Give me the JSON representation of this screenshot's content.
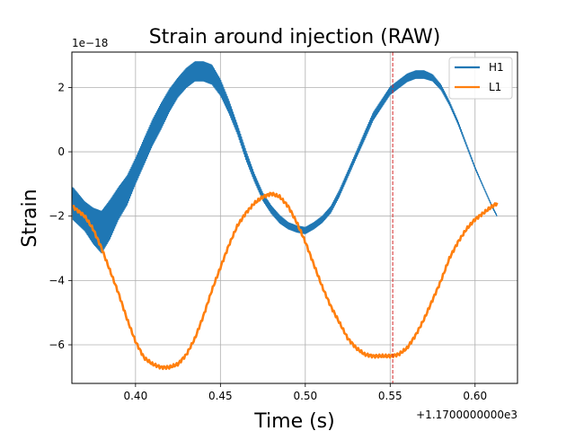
{
  "chart_data": {
    "type": "line",
    "title": "Strain around injection (RAW)",
    "xlabel": "Time (s)",
    "ylabel": "Strain",
    "x_offset_label": "+1.1700000000e3",
    "y_scale_label": "1e−18",
    "xlim": [
      0.3625,
      0.625
    ],
    "ylim": [
      -7.2,
      3.1
    ],
    "xticks": [
      0.4,
      0.45,
      0.5,
      0.55,
      0.6
    ],
    "xtick_labels": [
      "0.40",
      "0.45",
      "0.50",
      "0.55",
      "0.60"
    ],
    "yticks": [
      -6,
      -4,
      -2,
      0,
      2
    ],
    "ytick_labels": [
      "−6",
      "−4",
      "−2",
      "0",
      "2"
    ],
    "grid": true,
    "legend_position": "top-right",
    "injection_marker": {
      "x": 0.5515,
      "color": "#d62728",
      "style": "dashed"
    },
    "series": [
      {
        "name": "H1",
        "color": "#1f77b4",
        "oscillation": true,
        "x": [
          0.363,
          0.37,
          0.375,
          0.38,
          0.385,
          0.39,
          0.395,
          0.4,
          0.405,
          0.41,
          0.415,
          0.42,
          0.425,
          0.43,
          0.435,
          0.44,
          0.445,
          0.45,
          0.455,
          0.46,
          0.465,
          0.47,
          0.475,
          0.48,
          0.485,
          0.49,
          0.495,
          0.5,
          0.505,
          0.51,
          0.515,
          0.52,
          0.525,
          0.53,
          0.535,
          0.54,
          0.545,
          0.55,
          0.555,
          0.56,
          0.565,
          0.57,
          0.575,
          0.58,
          0.585,
          0.59,
          0.595,
          0.6,
          0.605,
          0.61,
          0.613
        ],
        "y": [
          -1.6,
          -2.0,
          -2.3,
          -2.5,
          -2.1,
          -1.6,
          -1.2,
          -0.6,
          0.0,
          0.6,
          1.1,
          1.6,
          2.0,
          2.3,
          2.5,
          2.5,
          2.4,
          2.0,
          1.4,
          0.7,
          -0.1,
          -0.8,
          -1.4,
          -1.8,
          -2.1,
          -2.3,
          -2.4,
          -2.45,
          -2.3,
          -2.1,
          -1.8,
          -1.3,
          -0.7,
          -0.1,
          0.5,
          1.1,
          1.5,
          1.9,
          2.1,
          2.3,
          2.4,
          2.4,
          2.3,
          2.0,
          1.5,
          0.9,
          0.2,
          -0.5,
          -1.1,
          -1.7,
          -2.0
        ],
        "amplitude": [
          0.5,
          0.45,
          0.55,
          0.65,
          0.6,
          0.5,
          0.45,
          0.4,
          0.4,
          0.4,
          0.4,
          0.35,
          0.3,
          0.3,
          0.3,
          0.3,
          0.3,
          0.25,
          0.2,
          0.15,
          0.15,
          0.12,
          0.12,
          0.12,
          0.12,
          0.1,
          0.1,
          0.1,
          0.1,
          0.1,
          0.1,
          0.1,
          0.1,
          0.1,
          0.12,
          0.12,
          0.12,
          0.12,
          0.12,
          0.12,
          0.12,
          0.12,
          0.1,
          0.08,
          0.06,
          0.05,
          0.04,
          0.03,
          0.02,
          0.02,
          0.02
        ]
      },
      {
        "name": "L1",
        "color": "#ff7f0e",
        "oscillation": false,
        "x": [
          0.363,
          0.37,
          0.375,
          0.38,
          0.385,
          0.39,
          0.395,
          0.4,
          0.405,
          0.41,
          0.415,
          0.42,
          0.425,
          0.43,
          0.435,
          0.44,
          0.445,
          0.45,
          0.455,
          0.46,
          0.465,
          0.47,
          0.475,
          0.48,
          0.485,
          0.49,
          0.495,
          0.5,
          0.505,
          0.51,
          0.515,
          0.52,
          0.525,
          0.53,
          0.535,
          0.54,
          0.545,
          0.55,
          0.555,
          0.56,
          0.565,
          0.57,
          0.575,
          0.58,
          0.585,
          0.59,
          0.595,
          0.6,
          0.605,
          0.61,
          0.613
        ],
        "y": [
          -1.7,
          -2.0,
          -2.4,
          -3.0,
          -3.7,
          -4.4,
          -5.2,
          -5.9,
          -6.4,
          -6.6,
          -6.7,
          -6.7,
          -6.6,
          -6.3,
          -5.8,
          -5.1,
          -4.3,
          -3.6,
          -2.9,
          -2.3,
          -1.9,
          -1.6,
          -1.4,
          -1.3,
          -1.4,
          -1.7,
          -2.2,
          -2.8,
          -3.5,
          -4.2,
          -4.8,
          -5.3,
          -5.8,
          -6.1,
          -6.3,
          -6.35,
          -6.35,
          -6.35,
          -6.3,
          -6.1,
          -5.7,
          -5.2,
          -4.6,
          -4.0,
          -3.3,
          -2.8,
          -2.4,
          -2.1,
          -1.9,
          -1.7,
          -1.6
        ]
      }
    ]
  }
}
